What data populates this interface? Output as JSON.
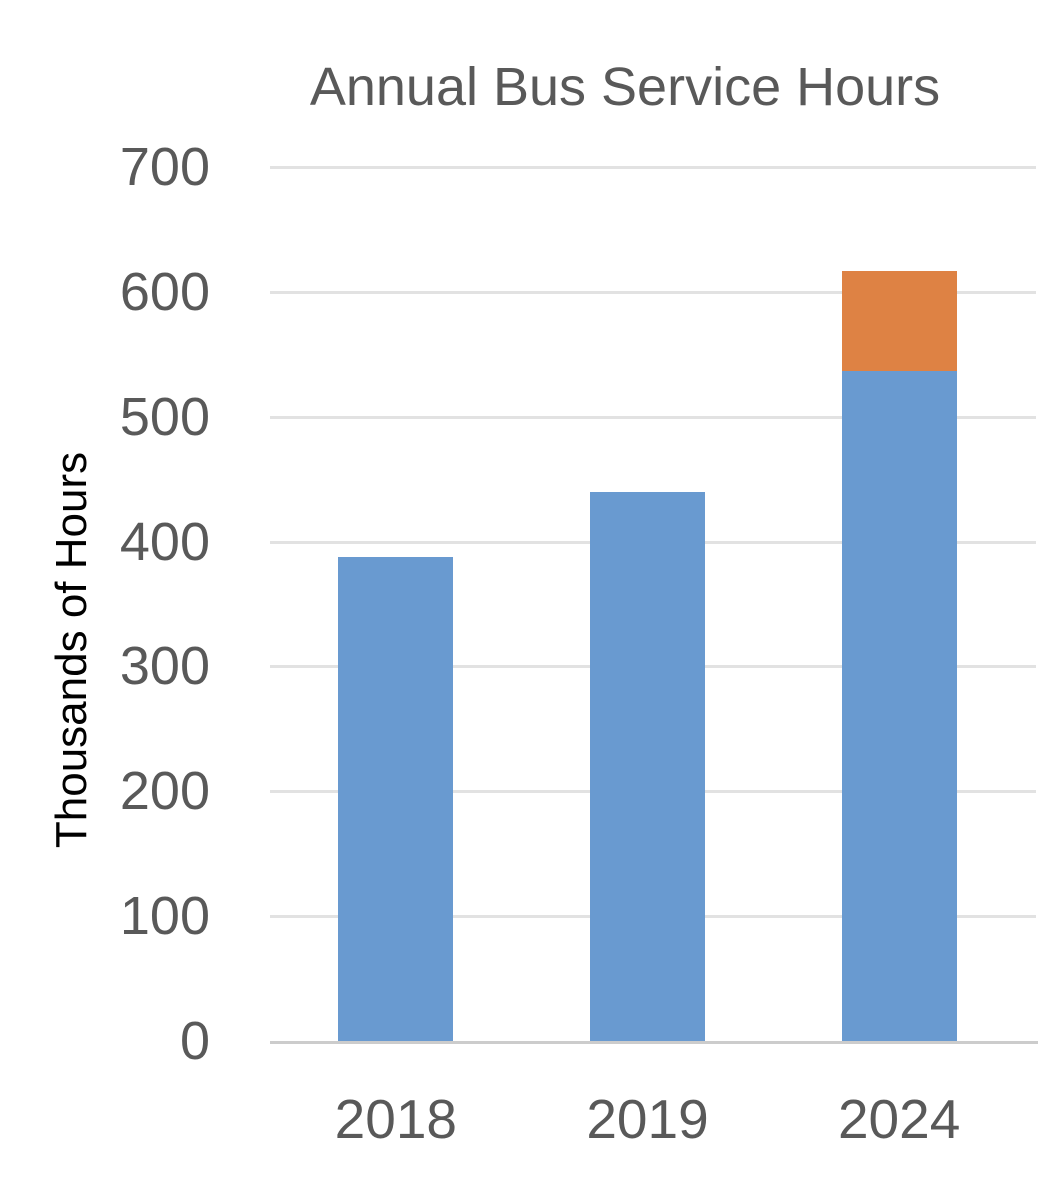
{
  "chart_data": {
    "type": "bar",
    "stacked": true,
    "title": "Annual Bus Service Hours",
    "xlabel": "",
    "ylabel": "Thousands of Hours",
    "categories": [
      "2018",
      "2019",
      "2024"
    ],
    "series": [
      {
        "name": "series-1",
        "color": "#699AD0",
        "values": [
          388,
          440,
          537
        ]
      },
      {
        "name": "series-2",
        "color": "#DE8244",
        "values": [
          0,
          0,
          80
        ]
      }
    ],
    "category_totals": [
      388,
      440,
      617
    ],
    "y_ticks": [
      0,
      100,
      200,
      300,
      400,
      500,
      600,
      700
    ],
    "ylim": [
      0,
      700
    ],
    "grid": true,
    "legend_position": "none",
    "colors": {
      "title_text": "#595959",
      "tick_text": "#595959",
      "y_axis_title_text": "#000000",
      "gridline": "#e2e2e2",
      "axis_line": "#cccccc",
      "background": "#ffffff"
    }
  }
}
